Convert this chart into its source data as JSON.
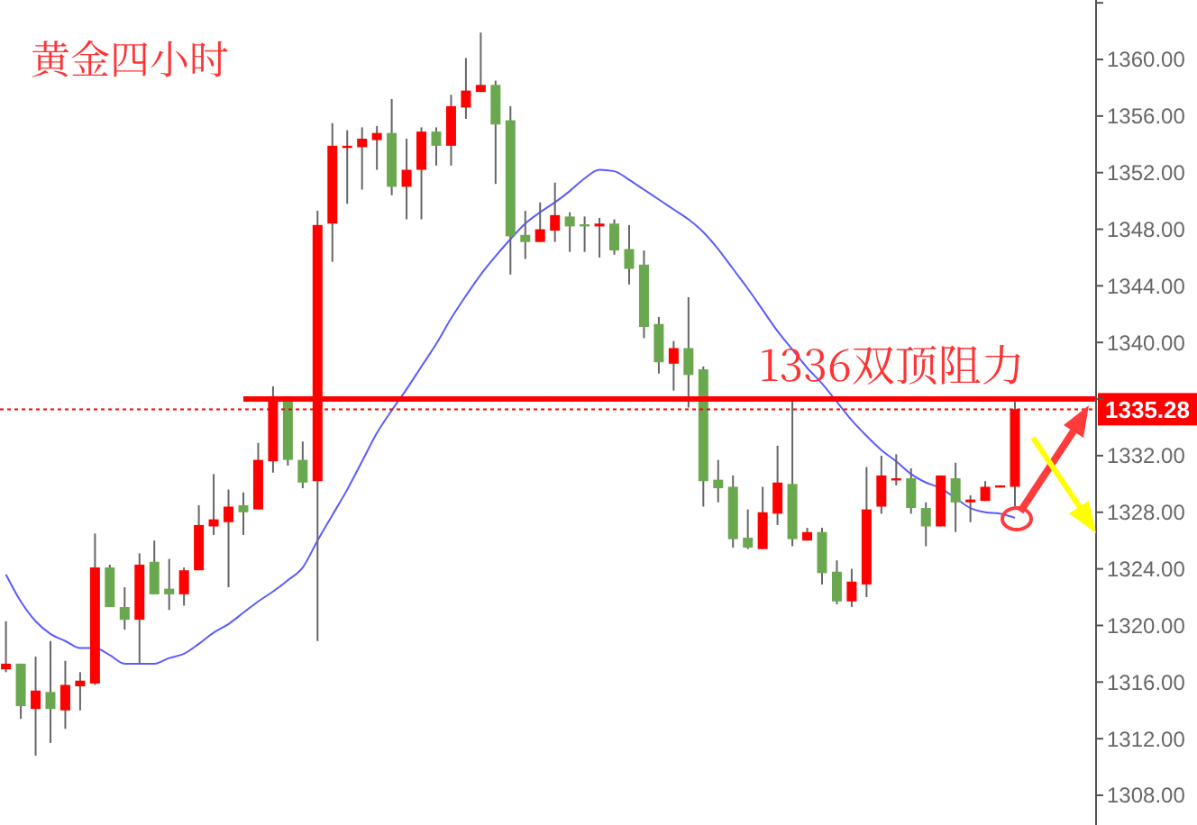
{
  "chart_data": {
    "type": "candlestick",
    "title": "黄金四小时",
    "categories": [
      null,
      null,
      null,
      null,
      null,
      null,
      null,
      null,
      null,
      null,
      null,
      null,
      null,
      null,
      null,
      null,
      null,
      null,
      null,
      null,
      null,
      null,
      null,
      null,
      null,
      null,
      null,
      null,
      null,
      null,
      null,
      null,
      null,
      null,
      null,
      null,
      null,
      null,
      null,
      null,
      null,
      null,
      null,
      null,
      null,
      null,
      null,
      null,
      null,
      null,
      null,
      null,
      null,
      null,
      null,
      null,
      null,
      null,
      null,
      null,
      null,
      null,
      null,
      null,
      null,
      null,
      null,
      null,
      null
    ],
    "ohlc": [
      [
        1316.9,
        1320.3,
        1316.7,
        1317.3
      ],
      [
        1317.3,
        1317.3,
        1313.4,
        1314.3
      ],
      [
        1314.1,
        1317.8,
        1310.8,
        1315.4
      ],
      [
        1315.3,
        1318.9,
        1311.7,
        1314.1
      ],
      [
        1314.0,
        1317.5,
        1312.7,
        1315.8
      ],
      [
        1315.7,
        1316.7,
        1314.0,
        1316.1
      ],
      [
        1315.9,
        1326.5,
        1315.8,
        1324.1
      ],
      [
        1324.1,
        1324.3,
        1321.3,
        1321.3
      ],
      [
        1321.3,
        1322.7,
        1319.7,
        1320.4
      ],
      [
        1320.4,
        1325.1,
        1317.3,
        1324.3
      ],
      [
        1324.5,
        1326.0,
        1322.2,
        1322.2
      ],
      [
        1322.6,
        1324.7,
        1321.1,
        1322.2
      ],
      [
        1322.2,
        1324.1,
        1321.4,
        1323.9
      ],
      [
        1323.9,
        1328.5,
        1323.9,
        1327.1
      ],
      [
        1327.0,
        1330.7,
        1326.4,
        1327.5
      ],
      [
        1327.3,
        1329.6,
        1322.7,
        1328.4
      ],
      [
        1328.5,
        1329.4,
        1326.4,
        1328.0
      ],
      [
        1328.2,
        1332.9,
        1328.2,
        1331.7
      ],
      [
        1331.6,
        1336.9,
        1330.8,
        1336.2
      ],
      [
        1336.2,
        1336.2,
        1331.3,
        1331.7
      ],
      [
        1331.7,
        1333.0,
        1329.7,
        1330.1
      ],
      [
        1330.2,
        1349.3,
        1318.9,
        1348.3
      ],
      [
        1348.4,
        1355.5,
        1345.7,
        1353.9
      ],
      [
        1353.8,
        1355.0,
        1349.8,
        1353.9
      ],
      [
        1353.8,
        1355.2,
        1350.8,
        1354.4
      ],
      [
        1354.3,
        1355.3,
        1352.2,
        1354.8
      ],
      [
        1354.8,
        1357.2,
        1350.4,
        1351.0
      ],
      [
        1351.0,
        1354.4,
        1348.7,
        1352.2
      ],
      [
        1352.2,
        1355.2,
        1348.7,
        1354.9
      ],
      [
        1354.9,
        1355.2,
        1352.5,
        1353.9
      ],
      [
        1353.9,
        1357.5,
        1352.5,
        1356.7
      ],
      [
        1356.6,
        1360.1,
        1355.8,
        1357.8
      ],
      [
        1357.7,
        1361.9,
        1357.7,
        1358.2
      ],
      [
        1358.2,
        1358.5,
        1351.2,
        1355.4
      ],
      [
        1355.7,
        1356.7,
        1344.8,
        1347.5
      ],
      [
        1347.6,
        1349.3,
        1345.9,
        1347.1
      ],
      [
        1347.1,
        1349.9,
        1347.1,
        1348.0
      ],
      [
        1347.9,
        1351.3,
        1347.1,
        1349.0
      ],
      [
        1348.9,
        1349.2,
        1346.4,
        1348.2
      ],
      [
        1348.35,
        1348.9,
        1346.4,
        1348.3
      ],
      [
        1348.2,
        1348.8,
        1346.0,
        1348.4
      ],
      [
        1348.4,
        1348.7,
        1346.2,
        1346.5
      ],
      [
        1346.6,
        1348.3,
        1344.1,
        1345.2
      ],
      [
        1345.5,
        1346.5,
        1340.3,
        1341.1
      ],
      [
        1341.3,
        1341.8,
        1337.8,
        1338.6
      ],
      [
        1338.5,
        1340.1,
        1336.6,
        1339.6
      ],
      [
        1339.6,
        1343.2,
        1335.4,
        1337.7
      ],
      [
        1338.1,
        1338.3,
        1328.4,
        1330.2
      ],
      [
        1330.3,
        1331.7,
        1328.7,
        1329.7
      ],
      [
        1329.8,
        1330.6,
        1325.5,
        1326.1
      ],
      [
        1326.2,
        1328.2,
        1325.4,
        1325.5
      ],
      [
        1325.4,
        1329.8,
        1325.4,
        1328.0
      ],
      [
        1327.9,
        1332.7,
        1327.1,
        1330.1
      ],
      [
        1330.0,
        1335.9,
        1325.6,
        1326.1
      ],
      [
        1326.0,
        1326.9,
        1326.0,
        1326.6
      ],
      [
        1326.6,
        1326.9,
        1322.9,
        1323.7
      ],
      [
        1323.8,
        1324.6,
        1321.5,
        1321.7
      ],
      [
        1321.7,
        1324.0,
        1321.3,
        1323.1
      ],
      [
        1322.9,
        1331.2,
        1322.0,
        1328.2
      ],
      [
        1328.4,
        1332.0,
        1327.9,
        1330.6
      ],
      [
        1330.3,
        1332.1,
        1329.9,
        1330.4
      ],
      [
        1330.4,
        1331.1,
        1327.9,
        1328.3
      ],
      [
        1328.3,
        1328.7,
        1325.6,
        1327.0
      ],
      [
        1327.0,
        1330.6,
        1327.0,
        1330.6
      ],
      [
        1330.4,
        1331.5,
        1326.6,
        1328.7
      ],
      [
        1328.7,
        1329.2,
        1327.3,
        1328.9
      ],
      [
        1328.8,
        1330.2,
        1328.8,
        1329.8
      ],
      [
        1329.8,
        1329.9,
        1329.8,
        1329.9
      ],
      [
        1329.8,
        1335.8,
        1328.4,
        1335.28
      ]
    ],
    "colors": [
      "#ff0000",
      "#6aa84f",
      "#ff0000",
      "#6aa84f",
      "#ff0000",
      "#ff0000",
      "#ff0000",
      "#6aa84f",
      "#6aa84f",
      "#ff0000",
      "#6aa84f",
      "#6aa84f",
      "#ff0000",
      "#ff0000",
      "#ff0000",
      "#ff0000",
      "#6aa84f",
      "#ff0000",
      "#ff0000",
      "#6aa84f",
      "#6aa84f",
      "#ff0000",
      "#ff0000",
      "#ff0000",
      "#ff0000",
      "#ff0000",
      "#6aa84f",
      "#ff0000",
      "#ff0000",
      "#6aa84f",
      "#ff0000",
      "#ff0000",
      "#ff0000",
      "#6aa84f",
      "#6aa84f",
      "#6aa84f",
      "#ff0000",
      "#ff0000",
      "#6aa84f",
      "#6aa84f",
      "#ff0000",
      "#6aa84f",
      "#6aa84f",
      "#6aa84f",
      "#6aa84f",
      "#ff0000",
      "#6aa84f",
      "#6aa84f",
      "#6aa84f",
      "#6aa84f",
      "#6aa84f",
      "#ff0000",
      "#ff0000",
      "#6aa84f",
      "#ff0000",
      "#6aa84f",
      "#6aa84f",
      "#ff0000",
      "#ff0000",
      "#ff0000",
      "#ff0000",
      "#6aa84f",
      "#6aa84f",
      "#ff0000",
      "#6aa84f",
      "#ff0000",
      "#ff0000",
      "#ff0000",
      "#ff0000"
    ],
    "series": [
      {
        "type": "line",
        "color": "#5b5bff",
        "values": [
          1323.6,
          1321.7,
          1320.3,
          1319.4,
          1318.9,
          1318.4,
          1318.4,
          1317.9,
          1317.3,
          1317.3,
          1317.3,
          1317.7,
          1318.0,
          1318.7,
          1319.5,
          1320.1,
          1320.9,
          1321.7,
          1322.4,
          1323.2,
          1324.1,
          1326.0,
          1327.8,
          1329.6,
          1331.6,
          1333.6,
          1335.2,
          1336.7,
          1338.3,
          1339.9,
          1341.7,
          1343.3,
          1344.8,
          1346.1,
          1347.3,
          1348.4,
          1349.2,
          1349.9,
          1350.7,
          1351.6,
          1352.2,
          1352.1,
          1351.5,
          1350.8,
          1350.1,
          1349.4,
          1348.7,
          1347.8,
          1346.6,
          1345.2,
          1343.8,
          1342.3,
          1340.8,
          1339.5,
          1338.2,
          1337.1,
          1335.8,
          1334.5,
          1333.4,
          1332.4,
          1331.6,
          1330.7,
          1330.1,
          1329.7,
          1329.0,
          1328.3,
          1328.0,
          1327.9,
          1327.6
        ]
      }
    ],
    "ylim": [
      1305.9,
      1364.2
    ],
    "yticks": [
      {
        "value": 1308,
        "label": "1308.00"
      },
      {
        "value": 1312,
        "label": "1312.00"
      },
      {
        "value": 1316,
        "label": "1316.00"
      },
      {
        "value": 1320,
        "label": "1320.00"
      },
      {
        "value": 1324,
        "label": "1324.00"
      },
      {
        "value": 1328,
        "label": "1328.00"
      },
      {
        "value": 1332,
        "label": "1332.00"
      },
      {
        "value": 1336,
        "label": null
      },
      {
        "value": 1340,
        "label": "1340.00"
      },
      {
        "value": 1344,
        "label": "1344.00"
      },
      {
        "value": 1348,
        "label": "1348.00"
      },
      {
        "value": 1352,
        "label": "1352.00"
      },
      {
        "value": 1356,
        "label": "1356.00"
      },
      {
        "value": 1360,
        "label": "1360.00"
      },
      {
        "value": 1364,
        "label": null
      }
    ],
    "tick_labels": "y",
    "ref_lines": [
      {
        "axis": "y",
        "value": 1336,
        "color": "#ff0000",
        "line_style": "solid"
      },
      {
        "axis": "y",
        "value": 1335.28,
        "label": "1335.28",
        "color": "#ff0000",
        "line_style": "dotted"
      }
    ],
    "annotations": [
      {
        "text": "1336双顶阻力",
        "y": 1336
      }
    ]
  }
}
